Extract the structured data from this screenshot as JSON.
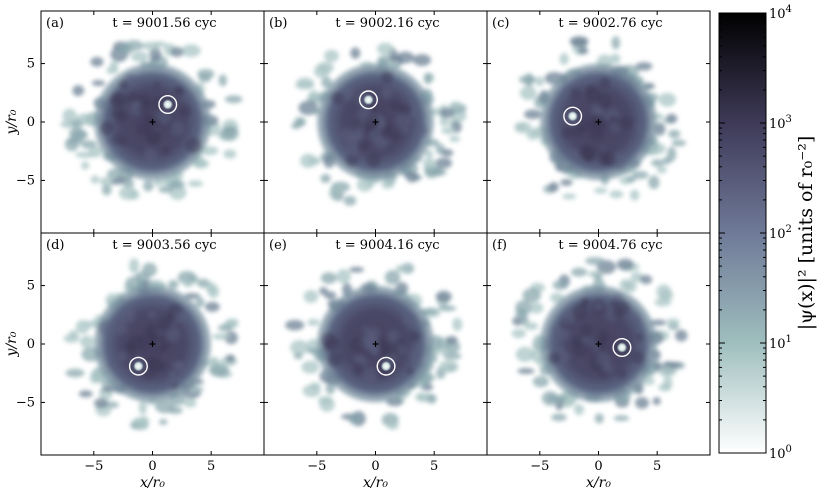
{
  "chart_data": {
    "type": "heatmap",
    "colorbar": {
      "label": "|ψ(x)|² [units of r₀⁻²]",
      "scale": "log",
      "range": [
        1,
        10000
      ],
      "ticks": [
        {
          "value": 1,
          "base": "10",
          "exp": "0"
        },
        {
          "value": 10,
          "base": "10",
          "exp": "1"
        },
        {
          "value": 100,
          "base": "10",
          "exp": "2"
        },
        {
          "value": 1000,
          "base": "10",
          "exp": "3"
        },
        {
          "value": 10000,
          "base": "10",
          "exp": "4"
        }
      ],
      "colormap": [
        "#ffffff",
        "#9fbebe",
        "#6f7a98",
        "#3e3a58",
        "#000000"
      ]
    },
    "axes": {
      "xlabel": "x/r₀",
      "ylabel": "y/r₀",
      "xlim": [
        -9.5,
        9.5
      ],
      "ylim": [
        -9.5,
        9.5
      ],
      "xticks": [
        -5,
        0,
        5
      ],
      "yticks": [
        -5,
        0,
        5
      ],
      "xtick_labels": [
        "−5",
        "0",
        "5"
      ],
      "ytick_labels": [
        "−5",
        "0",
        "5"
      ]
    },
    "panels": [
      {
        "id": "(a)",
        "time": "t = 9001.56 cyc",
        "marker": {
          "x": 1.3,
          "y": 1.5
        }
      },
      {
        "id": "(b)",
        "time": "t = 9002.16 cyc",
        "marker": {
          "x": -0.6,
          "y": 1.9
        }
      },
      {
        "id": "(c)",
        "time": "t = 9002.76 cyc",
        "marker": {
          "x": -2.2,
          "y": 0.5
        }
      },
      {
        "id": "(d)",
        "time": "t = 9003.56 cyc",
        "marker": {
          "x": -1.2,
          "y": -1.9
        }
      },
      {
        "id": "(e)",
        "time": "t = 9004.16 cyc",
        "marker": {
          "x": 0.9,
          "y": -1.9
        }
      },
      {
        "id": "(f)",
        "time": "t = 9004.76 cyc",
        "marker": {
          "x": 2.0,
          "y": -0.3
        }
      }
    ]
  }
}
